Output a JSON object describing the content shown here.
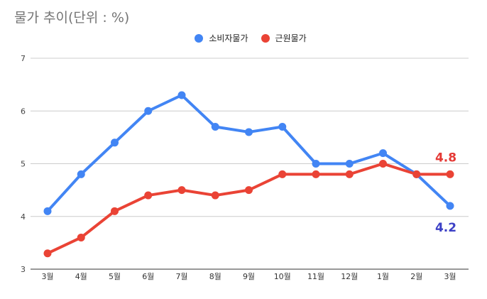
{
  "chart_data": {
    "type": "line",
    "title": "물가 추이(단위 : %)",
    "categories": [
      "3월",
      "4월",
      "5월",
      "6월",
      "7월",
      "8월",
      "9월",
      "10월",
      "11월",
      "12월",
      "1월",
      "2월",
      "3월"
    ],
    "series": [
      {
        "name": "소비자물가",
        "color": "#4285f4",
        "values": [
          4.1,
          4.8,
          5.4,
          6.0,
          6.3,
          5.7,
          5.6,
          5.7,
          5.0,
          5.0,
          5.2,
          4.8,
          4.2
        ]
      },
      {
        "name": "근원물가",
        "color": "#ea4335",
        "values": [
          3.3,
          3.6,
          4.1,
          4.4,
          4.5,
          4.4,
          4.5,
          4.8,
          4.8,
          4.8,
          5.0,
          4.8,
          4.8
        ]
      }
    ],
    "ylim": [
      3,
      7
    ],
    "yticks": [
      "3",
      "4",
      "5",
      "6",
      "7"
    ],
    "grid": true,
    "legend_position": "top",
    "annotations": [
      {
        "text": "4.8",
        "series": 1,
        "index": 12,
        "color": "#e53935"
      },
      {
        "text": "4.2",
        "series": 0,
        "index": 12,
        "color": "#3c40c6"
      }
    ]
  }
}
